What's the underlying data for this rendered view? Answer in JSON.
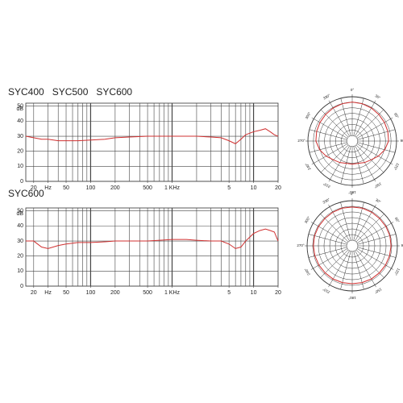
{
  "chart_data": [
    {
      "type": "line",
      "title": "SYC400   SYC500   SYC600",
      "y_label": "dB",
      "x_log": true,
      "x": [
        16,
        20,
        25,
        30,
        40,
        50,
        70,
        100,
        150,
        200,
        300,
        500,
        700,
        1000,
        1500,
        2000,
        3000,
        4000,
        5000,
        6000,
        7000,
        8000,
        10000,
        12000,
        14000,
        16000,
        18000,
        20000
      ],
      "series": [
        {
          "color": "#d03030",
          "values": [
            30,
            29,
            28,
            28,
            27,
            27,
            27,
            27.5,
            28,
            29,
            29.5,
            30,
            30,
            30,
            30,
            30,
            29.5,
            29,
            27,
            25,
            28,
            31,
            33,
            34,
            35,
            33,
            31,
            30
          ]
        }
      ],
      "xlim": [
        16,
        20000
      ],
      "ylim": [
        0,
        52
      ],
      "yticks": [
        0,
        10,
        20,
        30,
        40,
        50
      ],
      "xticks": [
        20,
        {
          "value": 30,
          "label": "Hz"
        },
        50,
        100,
        200,
        500,
        {
          "value": 1000,
          "label": "1 KHz"
        },
        {
          "value": 5000,
          "label": "5"
        },
        {
          "value": 10000,
          "label": "10"
        },
        {
          "value": 20000,
          "label": "20"
        }
      ],
      "grid": true
    },
    {
      "type": "polar",
      "theta": [
        0,
        15,
        30,
        45,
        60,
        75,
        90,
        105,
        120,
        135,
        150,
        165,
        180,
        195,
        210,
        225,
        240,
        255,
        270,
        285,
        300,
        315,
        330,
        345
      ],
      "series": [
        {
          "color": "#d03030",
          "r": [
            -3,
            -3.2,
            -3.5,
            -3.8,
            -4,
            -4.2,
            -4.5,
            -6,
            -8,
            -10,
            -11,
            -12,
            -12,
            -12,
            -11,
            -10,
            -8,
            -6,
            -4.5,
            -4.2,
            -4,
            -3.8,
            -3.5,
            -3.2
          ]
        }
      ],
      "rlim": [
        -25,
        0
      ],
      "thetaticks": [
        {
          "value": 0,
          "label": "0°"
        },
        {
          "value": 30,
          "label": "30°"
        },
        {
          "value": 60,
          "label": "60°"
        },
        {
          "value": 90,
          "label": "90°"
        },
        {
          "value": 120,
          "label": "120°"
        },
        {
          "value": 150,
          "label": "150°"
        },
        {
          "value": 180,
          "label": "180°"
        },
        {
          "value": 210,
          "label": "210°"
        },
        {
          "value": 240,
          "label": "240°"
        },
        {
          "value": 270,
          "label": "270°"
        },
        {
          "value": 300,
          "label": "300°"
        },
        {
          "value": 330,
          "label": "330°"
        }
      ]
    },
    {
      "type": "line",
      "title": "SYC600",
      "y_label": "dB",
      "x_log": true,
      "x": [
        16,
        20,
        25,
        30,
        40,
        50,
        70,
        100,
        150,
        200,
        300,
        500,
        700,
        1000,
        1500,
        2000,
        3000,
        4000,
        5000,
        6000,
        7000,
        8000,
        10000,
        12000,
        14000,
        16000,
        18000,
        20000
      ],
      "series": [
        {
          "color": "#d03030",
          "values": [
            30,
            30,
            26,
            25,
            27,
            28,
            29,
            29,
            29.5,
            30,
            30,
            30,
            30.5,
            31,
            31,
            30.5,
            30,
            30,
            28,
            25,
            26,
            30,
            35,
            37,
            38,
            37,
            36,
            30
          ]
        }
      ],
      "xlim": [
        16,
        20000
      ],
      "ylim": [
        0,
        52
      ],
      "yticks": [
        0,
        10,
        20,
        30,
        40,
        50
      ],
      "xticks": [
        20,
        {
          "value": 30,
          "label": "Hz"
        },
        50,
        100,
        200,
        500,
        {
          "value": 1000,
          "label": "1 KHz"
        },
        {
          "value": 5000,
          "label": "5"
        },
        {
          "value": 10000,
          "label": "10"
        },
        {
          "value": 20000,
          "label": "20"
        }
      ],
      "grid": true
    },
    {
      "type": "polar",
      "theta": [
        0,
        15,
        30,
        45,
        60,
        75,
        90,
        105,
        120,
        135,
        150,
        165,
        180,
        195,
        210,
        225,
        240,
        255,
        270,
        285,
        300,
        315,
        330,
        345
      ],
      "series": [
        {
          "color": "#d03030",
          "r": [
            -3.5,
            -3.4,
            -3.5,
            -3.6,
            -3.5,
            -3.4,
            -3.5,
            -3.6,
            -3.7,
            -3.8,
            -3.8,
            -3.9,
            -4,
            -3.9,
            -3.8,
            -3.8,
            -3.7,
            -3.6,
            -3.5,
            -3.4,
            -3.5,
            -3.6,
            -3.5,
            -3.4
          ]
        }
      ],
      "rlim": [
        -25,
        0
      ],
      "thetaticks": [
        {
          "value": 0,
          "label": "0°"
        },
        {
          "value": 30,
          "label": "30°"
        },
        {
          "value": 60,
          "label": "60°"
        },
        {
          "value": 90,
          "label": "90°"
        },
        {
          "value": 120,
          "label": "120°"
        },
        {
          "value": 150,
          "label": "150°"
        },
        {
          "value": 180,
          "label": "180°"
        },
        {
          "value": 210,
          "label": "210°"
        },
        {
          "value": 240,
          "label": "240°"
        },
        {
          "value": 270,
          "label": "270°"
        },
        {
          "value": 300,
          "label": "300°"
        },
        {
          "value": 330,
          "label": "330°"
        }
      ]
    }
  ]
}
